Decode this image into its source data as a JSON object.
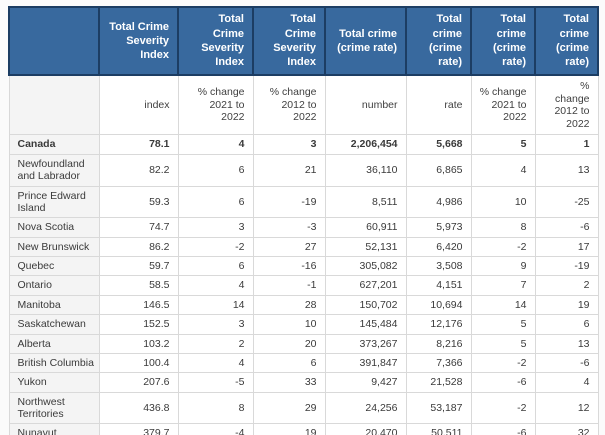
{
  "colors": {
    "header_bg": "#38699e",
    "header_border": "#1c3d63",
    "header_text": "#ffffff",
    "geo_column_bg": "#f4f4f4",
    "grid_line": "#d9d9d9",
    "body_text": "#3a3a3a",
    "page_bg": "#fbfbfb"
  },
  "chart_data": {
    "type": "table",
    "title": "",
    "column_groups": [
      "",
      "Total Crime Severity Index",
      "Total Crime Severity Index",
      "Total Crime Severity Index",
      "Total crime (crime rate)",
      "Total crime (crime rate)",
      "Total crime (crime rate)",
      "Total crime (crime rate)"
    ],
    "sub_headers": [
      "",
      "index",
      "% change 2021 to 2022",
      "% change 2012 to 2022",
      "number",
      "rate",
      "% change 2021 to 2022",
      "% change 2012 to 2022"
    ],
    "rows": [
      {
        "name": "Canada",
        "bold": true,
        "values": [
          "78.1",
          "4",
          "3",
          "2,206,454",
          "5,668",
          "5",
          "1"
        ]
      },
      {
        "name": "Newfoundland and Labrador",
        "bold": false,
        "values": [
          "82.2",
          "6",
          "21",
          "36,110",
          "6,865",
          "4",
          "13"
        ]
      },
      {
        "name": "Prince Edward Island",
        "bold": false,
        "values": [
          "59.3",
          "6",
          "-19",
          "8,511",
          "4,986",
          "10",
          "-25"
        ]
      },
      {
        "name": "Nova Scotia",
        "bold": false,
        "values": [
          "74.7",
          "3",
          "-3",
          "60,911",
          "5,973",
          "8",
          "-6"
        ]
      },
      {
        "name": "New Brunswick",
        "bold": false,
        "values": [
          "86.2",
          "-2",
          "27",
          "52,131",
          "6,420",
          "-2",
          "17"
        ]
      },
      {
        "name": "Quebec",
        "bold": false,
        "values": [
          "59.7",
          "6",
          "-16",
          "305,082",
          "3,508",
          "9",
          "-19"
        ]
      },
      {
        "name": "Ontario",
        "bold": false,
        "values": [
          "58.5",
          "4",
          "-1",
          "627,201",
          "4,151",
          "7",
          "2"
        ]
      },
      {
        "name": "Manitoba",
        "bold": false,
        "values": [
          "146.5",
          "14",
          "28",
          "150,702",
          "10,694",
          "14",
          "19"
        ]
      },
      {
        "name": "Saskatchewan",
        "bold": false,
        "values": [
          "152.5",
          "3",
          "10",
          "145,484",
          "12,176",
          "5",
          "6"
        ]
      },
      {
        "name": "Alberta",
        "bold": false,
        "values": [
          "103.2",
          "2",
          "20",
          "373,267",
          "8,216",
          "5",
          "13"
        ]
      },
      {
        "name": "British Columbia",
        "bold": false,
        "values": [
          "100.4",
          "4",
          "6",
          "391,847",
          "7,366",
          "-2",
          "-6"
        ]
      },
      {
        "name": "Yukon",
        "bold": false,
        "values": [
          "207.6",
          "-5",
          "33",
          "9,427",
          "21,528",
          "-6",
          "4"
        ]
      },
      {
        "name": "Northwest Territories",
        "bold": false,
        "values": [
          "436.8",
          "8",
          "29",
          "24,256",
          "53,187",
          "-2",
          "12"
        ]
      },
      {
        "name": "Nunavut",
        "bold": false,
        "values": [
          "379.7",
          "-4",
          "19",
          "20,470",
          "50,511",
          "-6",
          "32"
        ]
      }
    ]
  }
}
